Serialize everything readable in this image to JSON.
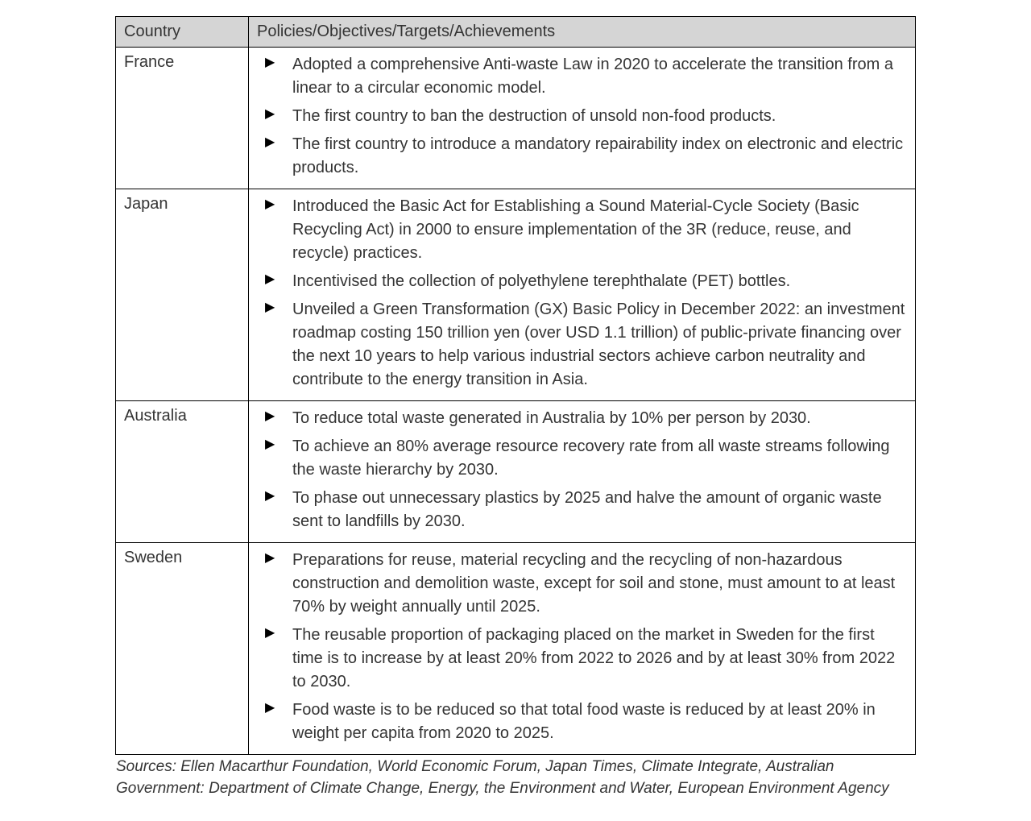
{
  "table": {
    "header_bg": "#d5d5d5",
    "border_color": "#000000",
    "text_color": "#343434",
    "font_size_pt": 15,
    "columns": [
      "Country",
      "Policies/Objectives/Targets/Achievements"
    ],
    "rows": [
      {
        "country": "France",
        "points": [
          "Adopted a comprehensive Anti-waste Law in 2020 to accelerate the transition from a linear to a circular economic model.",
          "The first country to ban the destruction of unsold non-food products.",
          "The first country to introduce a mandatory repairability index on electronic and electric products."
        ]
      },
      {
        "country": "Japan",
        "points": [
          "Introduced the Basic Act for Establishing a Sound Material-Cycle Society (Basic Recycling Act) in 2000 to ensure implementation of the 3R (reduce, reuse, and recycle) practices.",
          "Incentivised the collection of polyethylene terephthalate (PET) bottles.",
          "Unveiled a Green Transformation (GX) Basic Policy in December 2022: an investment roadmap costing 150 trillion yen (over USD 1.1 trillion) of public-private financing over the next 10 years to help various industrial sectors achieve carbon neutrality and contribute to the energy transition in Asia."
        ]
      },
      {
        "country": "Australia",
        "points": [
          "To reduce total waste generated in Australia by 10% per person by 2030.",
          "To achieve an 80% average resource recovery rate from all waste streams following the waste hierarchy by 2030.",
          "To phase out unnecessary plastics by 2025 and halve the amount of organic waste sent to landfills by 2030."
        ]
      },
      {
        "country": "Sweden",
        "points": [
          "Preparations for reuse, material recycling and the recycling of non-hazardous construction and demolition waste, except for soil and stone, must amount to at least 70% by weight annually until 2025.",
          "The reusable proportion of packaging placed on the market in Sweden for the first time is to increase by at least 20% from 2022 to 2026 and by at least 30% from 2022 to 2030.",
          "Food waste is to be reduced so that total food waste is reduced by at least 20% in weight per capita from 2020 to 2025."
        ]
      }
    ]
  },
  "sources": "Sources: Ellen Macarthur Foundation, World Economic Forum, Japan Times, Climate Integrate, Australian Government: Department of Climate Change, Energy, the Environment and Water, European Environment Agency"
}
